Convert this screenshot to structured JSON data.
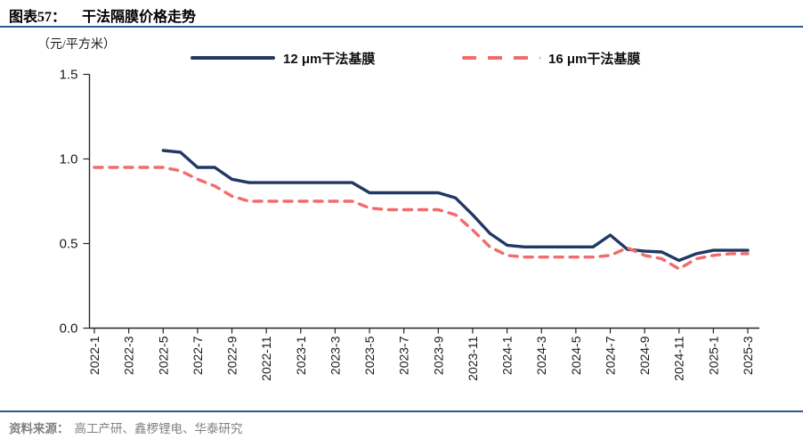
{
  "header": {
    "figure_label": "图表57：",
    "title": "干法隔膜价格走势"
  },
  "chart": {
    "unit_label": "（元/平方米）"
  },
  "chart_data": {
    "type": "line",
    "title": "干法隔膜价格走势",
    "ylabel": "元/平方米",
    "ylim": [
      0,
      1.5
    ],
    "yticks": [
      0.0,
      0.5,
      1.0,
      1.5
    ],
    "x_tick_step": 2,
    "grid": false,
    "legend_position": "top",
    "categories": [
      "2022-1",
      "2022-2",
      "2022-3",
      "2022-4",
      "2022-5",
      "2022-6",
      "2022-7",
      "2022-8",
      "2022-9",
      "2022-10",
      "2022-11",
      "2022-12",
      "2023-1",
      "2023-2",
      "2023-3",
      "2023-4",
      "2023-5",
      "2023-6",
      "2023-7",
      "2023-8",
      "2023-9",
      "2023-10",
      "2023-11",
      "2023-12",
      "2024-1",
      "2024-2",
      "2024-3",
      "2024-4",
      "2024-5",
      "2024-6",
      "2024-7",
      "2024-8",
      "2024-9",
      "2024-10",
      "2024-11",
      "2024-12",
      "2025-1",
      "2025-2",
      "2025-3"
    ],
    "series": [
      {
        "name": "12 μm干法基膜",
        "color": "#1F3864",
        "style": "solid",
        "values": [
          null,
          null,
          null,
          null,
          1.05,
          1.04,
          0.95,
          0.95,
          0.88,
          0.86,
          0.86,
          0.86,
          0.86,
          0.86,
          0.86,
          0.86,
          0.8,
          0.8,
          0.8,
          0.8,
          0.8,
          0.77,
          0.67,
          0.56,
          0.49,
          0.48,
          0.48,
          0.48,
          0.48,
          0.48,
          0.55,
          0.465,
          0.455,
          0.45,
          0.4,
          0.44,
          0.46,
          0.46,
          0.46
        ]
      },
      {
        "name": "16 μm干法基膜",
        "color": "#F16C6C",
        "style": "dashed",
        "values": [
          0.95,
          0.95,
          0.95,
          0.95,
          0.95,
          0.93,
          0.88,
          0.84,
          0.78,
          0.75,
          0.75,
          0.75,
          0.75,
          0.75,
          0.75,
          0.75,
          0.71,
          0.7,
          0.7,
          0.7,
          0.7,
          0.67,
          0.58,
          0.48,
          0.43,
          0.42,
          0.42,
          0.42,
          0.42,
          0.42,
          0.43,
          0.475,
          0.43,
          0.41,
          0.35,
          0.41,
          0.43,
          0.44,
          0.44
        ]
      }
    ]
  },
  "source": {
    "label": "资料来源：",
    "text": "高工产研、鑫椤锂电、华泰研究"
  },
  "colors": {
    "series_blue": "#1F3864",
    "series_red": "#F16C6C",
    "rule_navy": "#2E5A93",
    "axis": "#262626",
    "source_text": "#808080"
  }
}
